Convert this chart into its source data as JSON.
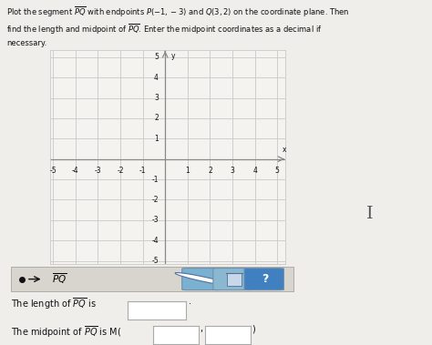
{
  "title_text": "Plot the segment $\\overline{PQ}$ with endpoints $P(-1, -3)$ and $Q(3, 2)$ on the coordinate plane. Then\nfind the length and midpoint of $\\overline{PQ}$. Enter the midpoint coordinates as a decimal if\nnecessary.",
  "title_plain": "Plot the segment PQ with endpoints P(-1, -3) and Q(3, 2) on the coordinate plane. Then\nfind the length and midpoint of PQ. Enter the midpoint coordinates as a decimal if\nnecessary.",
  "P": [
    -1,
    -3
  ],
  "Q": [
    3,
    2
  ],
  "xmin": -5,
  "xmax": 5,
  "ymin": -5,
  "ymax": 5,
  "grid_color": "#c8c8c8",
  "axis_color": "#888888",
  "segment_color": "#000000",
  "bg_color": "#f0eeeb",
  "plot_bg": "#f5f3f0",
  "text_color": "#111111",
  "legend_bg": "#d8d4ce",
  "legend_border": "#b0aca8",
  "dot_color": "#111111",
  "btn1_color": "#7ab0d0",
  "btn2_color": "#8ab8d0",
  "btn3_color": "#4080c0",
  "input_box_color": "#ffffff",
  "input_border_color": "#aaaaaa"
}
